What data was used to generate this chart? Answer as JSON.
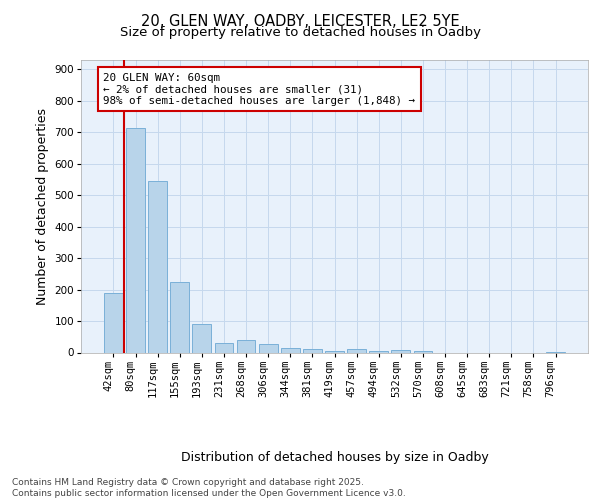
{
  "title_line1": "20, GLEN WAY, OADBY, LEICESTER, LE2 5YE",
  "title_line2": "Size of property relative to detached houses in Oadby",
  "xlabel": "Distribution of detached houses by size in Oadby",
  "ylabel": "Number of detached properties",
  "categories": [
    "42sqm",
    "80sqm",
    "117sqm",
    "155sqm",
    "193sqm",
    "231sqm",
    "268sqm",
    "306sqm",
    "344sqm",
    "381sqm",
    "419sqm",
    "457sqm",
    "494sqm",
    "532sqm",
    "570sqm",
    "608sqm",
    "645sqm",
    "683sqm",
    "721sqm",
    "758sqm",
    "796sqm"
  ],
  "values": [
    190,
    713,
    545,
    225,
    90,
    30,
    40,
    27,
    15,
    10,
    5,
    12,
    5,
    8,
    5,
    0,
    0,
    0,
    0,
    0,
    3
  ],
  "bar_color": "#b8d4ea",
  "bar_edge_color": "#7ab0d8",
  "annotation_text": "20 GLEN WAY: 60sqm\n← 2% of detached houses are smaller (31)\n98% of semi-detached houses are larger (1,848) →",
  "annotation_facecolor": "#ffffff",
  "annotation_edgecolor": "#cc0000",
  "vline_color": "#cc0000",
  "ylim": [
    0,
    930
  ],
  "yticks": [
    0,
    100,
    200,
    300,
    400,
    500,
    600,
    700,
    800,
    900
  ],
  "grid_color": "#c5d8ed",
  "background_color": "#e8f1fb",
  "footer_text": "Contains HM Land Registry data © Crown copyright and database right 2025.\nContains public sector information licensed under the Open Government Licence v3.0.",
  "title_fontsize": 10.5,
  "subtitle_fontsize": 9.5,
  "annotation_fontsize": 7.8,
  "axis_label_fontsize": 9,
  "tick_fontsize": 7.5,
  "footer_fontsize": 6.5
}
